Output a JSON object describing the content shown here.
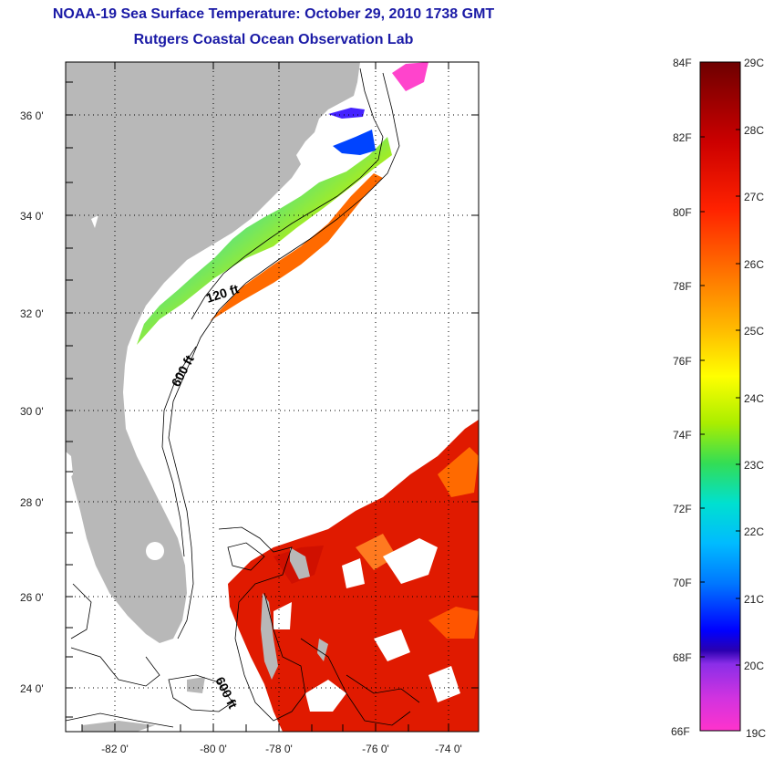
{
  "title": "NOAA-19 Sea Surface Temperature:  October 29, 2010 1738 GMT",
  "subtitle": "Rutgers Coastal Ocean Observation Lab",
  "map": {
    "lat_labels": [
      "36 0'",
      "34 0'",
      "32 0'",
      "30 0'",
      "28 0'",
      "26 0'",
      "24 0'"
    ],
    "lon_labels": [
      "-82 0'",
      "-80 0'",
      "-78 0'",
      "-76 0'",
      "-74 0'"
    ],
    "contours": [
      "120 ft",
      "600 ft",
      "600 ft"
    ],
    "grid": "dotted",
    "land_color": "#b8b8b8"
  },
  "colorbar": {
    "fahrenheit": [
      "84F",
      "82F",
      "80F",
      "78F",
      "76F",
      "74F",
      "72F",
      "70F",
      "68F",
      "66F"
    ],
    "celsius": [
      "29C",
      "28C",
      "27C",
      "26C",
      "25C",
      "24C",
      "23C",
      "22C",
      "21C",
      "20C",
      "19C"
    ],
    "colors": [
      "#7a0000",
      "#c00000",
      "#ff0000",
      "#ff5a00",
      "#ff9900",
      "#ffee00",
      "#a8e000",
      "#33dd66",
      "#00dddd",
      "#00aaff",
      "#0066ff",
      "#0000ff",
      "#2200cc",
      "#8833ee",
      "#cc33dd",
      "#ff33cc"
    ]
  }
}
